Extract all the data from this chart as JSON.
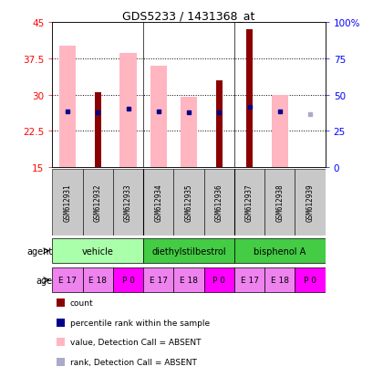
{
  "title": "GDS5233 / 1431368_at",
  "samples": [
    "GSM612931",
    "GSM612932",
    "GSM612933",
    "GSM612934",
    "GSM612935",
    "GSM612936",
    "GSM612937",
    "GSM612938",
    "GSM612939"
  ],
  "ylim_left": [
    15,
    45
  ],
  "ylim_right": [
    0,
    100
  ],
  "yticks_left": [
    15,
    22.5,
    30,
    37.5,
    45
  ],
  "ytick_labels_left": [
    "15",
    "22.5",
    "30",
    "37.5",
    "45"
  ],
  "yticks_right": [
    0,
    25,
    50,
    75,
    100
  ],
  "ytick_labels_right": [
    "0",
    "25",
    "50",
    "75",
    "100%"
  ],
  "pink_bar_top": [
    40.0,
    15.0,
    38.5,
    36.0,
    29.5,
    15.0,
    15.0,
    30.0,
    15.0
  ],
  "pink_bar_bottom": [
    15.0,
    15.0,
    15.0,
    15.0,
    15.0,
    15.0,
    15.0,
    15.0,
    15.0
  ],
  "red_bar_top": [
    15.0,
    30.5,
    15.0,
    15.0,
    15.0,
    33.0,
    43.5,
    15.0,
    15.0
  ],
  "red_bar_bottom": [
    15.0,
    15.0,
    15.0,
    15.0,
    15.0,
    15.0,
    15.0,
    15.0,
    15.0
  ],
  "blue_dot_y": [
    26.5,
    26.3,
    27.0,
    26.5,
    26.3,
    26.3,
    27.5,
    26.5,
    null
  ],
  "blue_dot_present": [
    true,
    true,
    true,
    true,
    true,
    true,
    true,
    true,
    false
  ],
  "light_blue_dot_y": [
    null,
    null,
    null,
    null,
    null,
    null,
    null,
    null,
    26.0
  ],
  "light_blue_dot_present": [
    false,
    false,
    false,
    false,
    false,
    false,
    false,
    false,
    true
  ],
  "pink_bar_color": "#FFB6C1",
  "red_bar_color": "#8B0000",
  "blue_dot_color": "#00008B",
  "light_blue_dot_color": "#AAAACC",
  "pink_bar_width": 0.55,
  "red_bar_width": 0.22,
  "agent_groups": [
    {
      "label": "vehicle",
      "cols": [
        0,
        1,
        2
      ],
      "color": "#AAFFAA"
    },
    {
      "label": "diethylstilbestrol",
      "cols": [
        3,
        4,
        5
      ],
      "color": "#44CC44"
    },
    {
      "label": "bisphenol A",
      "cols": [
        6,
        7,
        8
      ],
      "color": "#44CC44"
    }
  ],
  "age_labels": [
    "E 17",
    "E 18",
    "P 0",
    "E 17",
    "E 18",
    "P 0",
    "E 17",
    "E 18",
    "P 0"
  ],
  "age_colors": [
    "#EE82EE",
    "#EE82EE",
    "#FF00FF",
    "#EE82EE",
    "#EE82EE",
    "#FF00FF",
    "#EE82EE",
    "#EE82EE",
    "#FF00FF"
  ],
  "sample_box_color": "#C8C8C8",
  "group_sep_cols": [
    2.5,
    5.5
  ],
  "legend_items": [
    {
      "label": "count",
      "color": "#8B0000"
    },
    {
      "label": "percentile rank within the sample",
      "color": "#00008B"
    },
    {
      "label": "value, Detection Call = ABSENT",
      "color": "#FFB6C1"
    },
    {
      "label": "rank, Detection Call = ABSENT",
      "color": "#AAAACC"
    }
  ]
}
